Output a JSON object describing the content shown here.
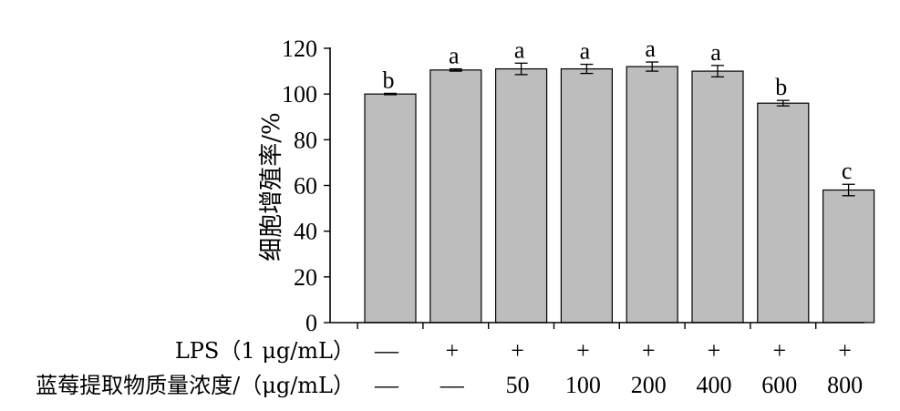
{
  "chart_data": {
    "type": "bar",
    "ylabel": "细胞增殖率/%",
    "ylim": [
      0,
      120
    ],
    "yticks": [
      0,
      20,
      40,
      60,
      80,
      100,
      120
    ],
    "grid": false,
    "bar_color": "#bdbdbd",
    "values": [
      100,
      110.5,
      111,
      111,
      112,
      110,
      96,
      58
    ],
    "errors": [
      0.3,
      0.5,
      2.5,
      2,
      2,
      2.5,
      1.2,
      2.5
    ],
    "letters": [
      "b",
      "a",
      "a",
      "a",
      "a",
      "a",
      "b",
      "c"
    ],
    "treatment_rows": [
      {
        "label": "LPS（1 μg/mL）",
        "cells": [
          "—",
          "+",
          "+",
          "+",
          "+",
          "+",
          "+",
          "+"
        ]
      },
      {
        "label": "蓝莓提取物质量浓度/（μg/mL）",
        "cells": [
          "—",
          "—",
          "50",
          "100",
          "200",
          "400",
          "600",
          "800"
        ]
      }
    ]
  }
}
